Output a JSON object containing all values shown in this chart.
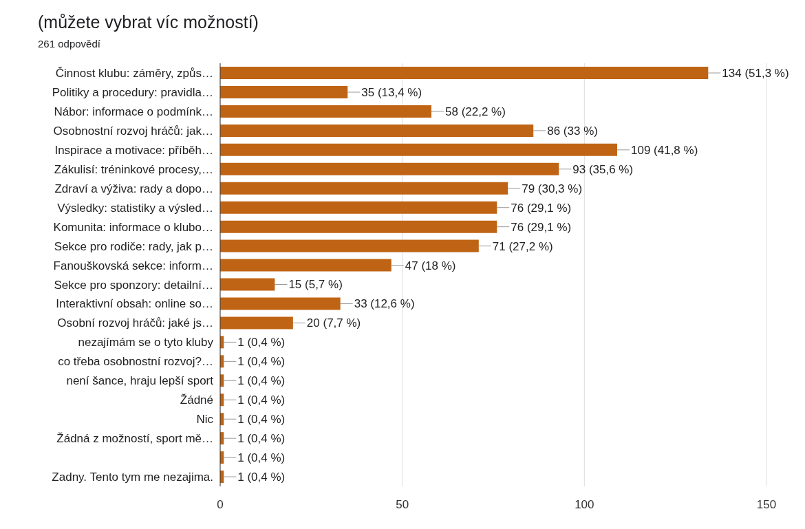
{
  "chart_data": {
    "type": "bar",
    "orientation": "horizontal",
    "title": "(můžete vybrat víc možností)",
    "subtitle": "261 odpovědí",
    "categories": [
      "Činnost klubu: záměry, způs…",
      "Politiky a procedury: pravidla…",
      "Nábor: informace o podmínk…",
      "Osobnostní rozvoj hráčů: jak…",
      "Inspirace a motivace: příběh…",
      "Zákulisí: tréninkové procesy,…",
      "Zdraví a výživa: rady a dopo…",
      "Výsledky: statistiky a výsled…",
      "Komunita: informace o klubo…",
      "Sekce pro rodiče: rady, jak p…",
      "Fanouškovská sekce: inform…",
      "Sekce pro sponzory: detailní…",
      "Interaktivní obsah: online so…",
      "Osobní rozvoj hráčů: jaké js…",
      "nezajímám se o tyto kluby",
      "co třeba osobnostní rozvoj?…",
      "není šance, hraju lepší sport",
      "Žádné",
      "Nic",
      "Žádná z možností, sport mě…",
      null,
      "Zadny. Tento tym me nezajima."
    ],
    "values": [
      134,
      35,
      58,
      86,
      109,
      93,
      79,
      76,
      76,
      71,
      47,
      15,
      33,
      20,
      1,
      1,
      1,
      1,
      1,
      1,
      1,
      1
    ],
    "value_labels": [
      "134 (51,3 %)",
      "35 (13,4 %)",
      "58 (22,2 %)",
      "86 (33 %)",
      "109 (41,8 %)",
      "93 (35,6 %)",
      "79 (30,3 %)",
      "76 (29,1 %)",
      "76 (29,1 %)",
      "71 (27,2 %)",
      "47 (18 %)",
      "15 (5,7 %)",
      "33 (12,6 %)",
      "20 (7,7 %)",
      "1 (0,4 %)",
      "1 (0,4 %)",
      "1 (0,4 %)",
      "1 (0,4 %)",
      "1 (0,4 %)",
      "1 (0,4 %)",
      "1 (0,4 %)",
      "1 (0,4 %)"
    ],
    "color": "#bf6414",
    "xlim": [
      0,
      150
    ],
    "xticks": [
      0,
      50,
      100,
      150
    ],
    "grid": "x"
  }
}
